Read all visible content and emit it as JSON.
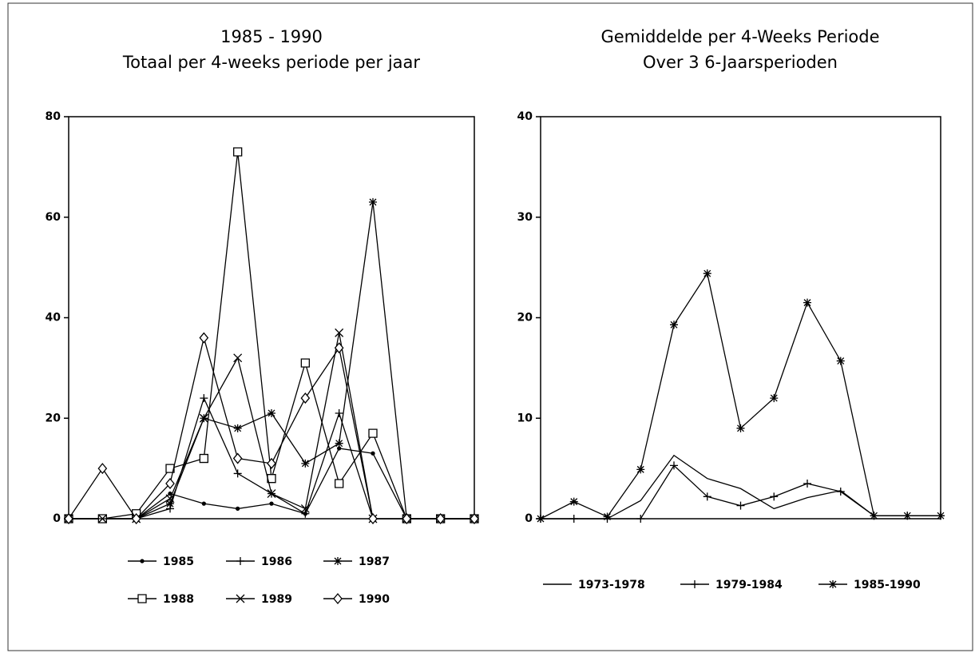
{
  "chart_data": [
    {
      "type": "line",
      "title": "1985 - 1990",
      "subtitle": "Totaal per 4-weeks periode per jaar",
      "categories": [
        null,
        null,
        null,
        null,
        null,
        null,
        null,
        null,
        null,
        null,
        null,
        null,
        null
      ],
      "ylim": [
        0,
        80
      ],
      "yticks": [
        0,
        20,
        40,
        60,
        80
      ],
      "grid": false,
      "legend": "bottom",
      "series": [
        {
          "name": "1985",
          "color": "#000000",
          "marker": "dot",
          "values": [
            0,
            0,
            0,
            5,
            3,
            2,
            3,
            1,
            14,
            13,
            0,
            0,
            0
          ]
        },
        {
          "name": "1986",
          "color": "#000000",
          "marker": "plus",
          "values": [
            0,
            0,
            0,
            2,
            24,
            9,
            5,
            1,
            21,
            0,
            0,
            0,
            0
          ]
        },
        {
          "name": "1987",
          "color": "#000000",
          "marker": "asterisk",
          "values": [
            0,
            0,
            0,
            3,
            20,
            18,
            21,
            11,
            15,
            63,
            0,
            0,
            0
          ]
        },
        {
          "name": "1988",
          "color": "#000000",
          "marker": "square",
          "values": [
            0,
            0,
            1,
            10,
            12,
            73,
            8,
            31,
            7,
            17,
            0,
            0,
            0
          ]
        },
        {
          "name": "1989",
          "color": "#000000",
          "marker": "x",
          "values": [
            0,
            0,
            0,
            4,
            20,
            32,
            5,
            2,
            37,
            0,
            0,
            0,
            0
          ]
        },
        {
          "name": "1990",
          "color": "#000000",
          "marker": "diamond",
          "values": [
            0,
            10,
            0,
            7,
            36,
            12,
            11,
            24,
            34,
            0,
            0,
            0,
            0
          ]
        }
      ]
    },
    {
      "type": "line",
      "title": "Gemiddelde per 4-Weeks Periode",
      "subtitle": "Over 3 6-Jaarsperioden",
      "categories": [
        null,
        null,
        null,
        null,
        null,
        null,
        null,
        null,
        null,
        null,
        null,
        null,
        null
      ],
      "ylim": [
        0,
        40
      ],
      "yticks": [
        0,
        10,
        20,
        30,
        40
      ],
      "grid": false,
      "legend": "bottom",
      "series": [
        {
          "name": "1973-1978",
          "color": "#000000",
          "marker": "none",
          "values": [
            0,
            0,
            0,
            1.8,
            6.3,
            4,
            3,
            1,
            2.1,
            2.8,
            0.3,
            0.3,
            0.3
          ]
        },
        {
          "name": "1979-1984",
          "color": "#000000",
          "marker": "plus",
          "values": [
            0,
            0,
            0,
            0,
            5.3,
            2.2,
            1.3,
            2.2,
            3.5,
            2.7,
            0.3,
            0.3,
            0.3
          ]
        },
        {
          "name": "1985-1990",
          "color": "#000000",
          "marker": "asterisk",
          "values": [
            0,
            1.7,
            0.2,
            4.9,
            19.3,
            24.4,
            9,
            12,
            21.5,
            15.7,
            0.3,
            0.3,
            0.3
          ]
        }
      ]
    }
  ]
}
